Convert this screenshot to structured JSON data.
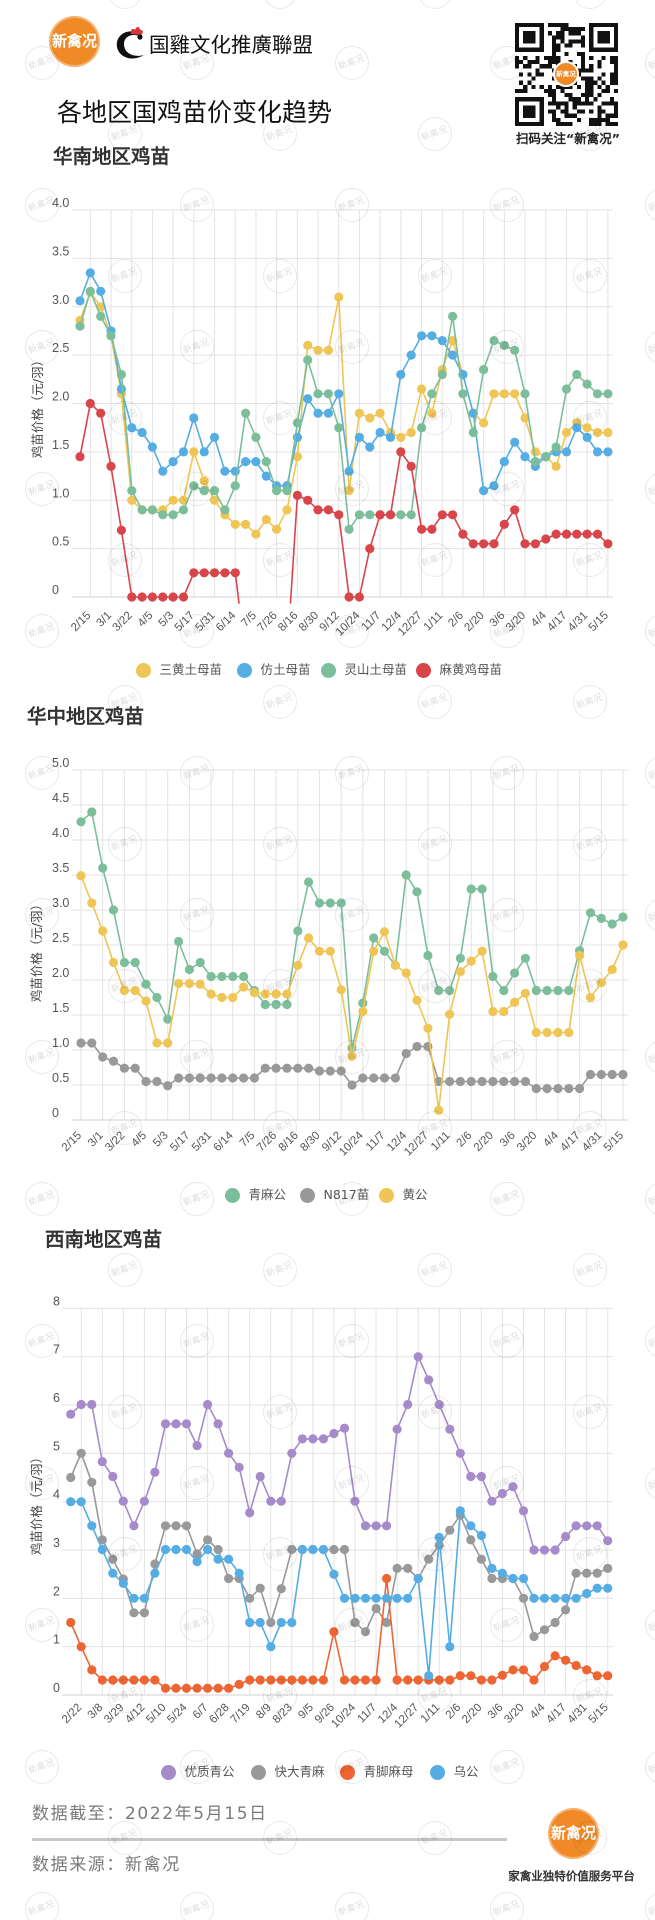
{
  "header": {
    "logo_text": "新禽况",
    "alliance_name": "国雞文化推廣聯盟",
    "page_title": "各地区国鸡苗价变化趋势",
    "qr_caption": "扫码关注“新禽况”",
    "qr_logo_text": "新禽况"
  },
  "colors": {
    "brand_orange": "#F08A26",
    "grid": "#E3E3E3",
    "text_gray": "#555555"
  },
  "chart_data": [
    {
      "type": "line",
      "title": "华南地区鸡苗",
      "xlabel": "",
      "ylabel": "鸡苗价格（元/羽）",
      "ylim": [
        0,
        4
      ],
      "ytick_step": 0.5,
      "yticks": [
        "0",
        "0.5",
        "1.0",
        "1.5",
        "2.0",
        "2.5",
        "3.0",
        "3.5",
        "4.0"
      ],
      "x_tick_labels": [
        "2/15",
        "3/1",
        "3/22",
        "4/5",
        "5/3",
        "5/17",
        "5/31",
        "6/14",
        "7/5",
        "7/26",
        "8/16",
        "8/30",
        "9/12",
        "10/24",
        "11/7",
        "12/4",
        "12/27",
        "1/11",
        "2/6",
        "2/20",
        "3/6",
        "3/20",
        "4/4",
        "4/17",
        "4/31",
        "5/15"
      ],
      "x_points": 52,
      "x_label_first_index": 1,
      "x_label_every": 2,
      "grid": true,
      "legend_position": "bottom",
      "series": [
        {
          "name": "三黄土母苗",
          "color": "#EFC555",
          "values": [
            2.86,
            3.15,
            3.0,
            2.7,
            2.1,
            1.0,
            0.9,
            0.9,
            0.9,
            1.0,
            1.0,
            1.5,
            1.2,
            1.0,
            0.85,
            0.75,
            0.75,
            0.65,
            0.8,
            0.7,
            0.9,
            1.45,
            2.6,
            2.55,
            2.55,
            3.1,
            1.1,
            1.9,
            1.85,
            1.9,
            1.7,
            1.65,
            1.7,
            2.15,
            1.9,
            2.35,
            2.65,
            2.3,
            1.9,
            1.8,
            2.1,
            2.1,
            2.1,
            1.85,
            1.5,
            1.45,
            1.35,
            1.7,
            1.8,
            1.75,
            1.7,
            1.7
          ]
        },
        {
          "name": "仿土母苗",
          "color": "#56ADE3",
          "values": [
            3.06,
            3.35,
            3.16,
            2.75,
            2.15,
            1.75,
            1.7,
            1.55,
            1.3,
            1.4,
            1.5,
            1.85,
            1.5,
            1.65,
            1.3,
            1.3,
            1.4,
            1.4,
            1.25,
            1.15,
            1.15,
            1.65,
            2.05,
            1.9,
            1.9,
            2.1,
            1.3,
            1.65,
            1.55,
            1.7,
            1.65,
            2.3,
            2.5,
            2.7,
            2.7,
            2.65,
            2.5,
            2.3,
            1.9,
            1.1,
            1.15,
            1.4,
            1.6,
            1.45,
            1.35,
            1.45,
            1.5,
            1.5,
            1.75,
            1.65,
            1.5,
            1.5
          ]
        },
        {
          "name": "灵山土母苗",
          "color": "#7DBE9A",
          "values": [
            2.8,
            3.16,
            2.9,
            2.7,
            2.3,
            1.1,
            0.9,
            0.9,
            0.85,
            0.85,
            0.9,
            1.15,
            1.1,
            1.1,
            0.9,
            1.15,
            1.9,
            1.65,
            1.4,
            1.1,
            1.1,
            1.8,
            2.45,
            2.1,
            2.1,
            1.75,
            0.7,
            0.85,
            0.85,
            0.85,
            0.85,
            0.85,
            0.85,
            1.75,
            2.1,
            2.3,
            2.9,
            2.1,
            1.7,
            2.35,
            2.65,
            2.6,
            2.55,
            2.1,
            1.4,
            1.45,
            1.55,
            2.15,
            2.3,
            2.2,
            2.1,
            2.1
          ]
        },
        {
          "name": "麻黄鸡母苗",
          "color": "#D8454A",
          "values": [
            1.45,
            2.0,
            1.9,
            1.35,
            0.69,
            0,
            0,
            0,
            0,
            0,
            0,
            0.25,
            0.25,
            0.25,
            0.25,
            0.25,
            null,
            null,
            null,
            null,
            null,
            1.05,
            1.0,
            0.9,
            0.9,
            0.85,
            0,
            0,
            0.5,
            0.85,
            0.85,
            1.5,
            1.35,
            0.7,
            0.7,
            0.85,
            0.85,
            0.65,
            0.55,
            0.55,
            0.55,
            0.75,
            0.9,
            0.55,
            0.55,
            0.6,
            0.65,
            0.65,
            0.65,
            0.65,
            0.65,
            0.55
          ]
        }
      ]
    },
    {
      "type": "line",
      "title": "华中地区鸡苗",
      "xlabel": "",
      "ylabel": "鸡苗价格（元/羽）",
      "ylim": [
        0,
        5
      ],
      "ytick_step": 0.5,
      "yticks": [
        "0",
        "0.5",
        "1.0",
        "1.5",
        "2.0",
        "2.5",
        "3.0",
        "3.5",
        "4.0",
        "4.5",
        "5.0"
      ],
      "x_tick_labels": [
        "2/15",
        "3/1",
        "3/22",
        "4/5",
        "5/3",
        "5/17",
        "5/31",
        "6/14",
        "7/5",
        "7/26",
        "8/16",
        "8/30",
        "9/12",
        "10/24",
        "11/7",
        "12/4",
        "12/27",
        "1/11",
        "2/6",
        "2/20",
        "3/6",
        "3/20",
        "4/4",
        "4/17",
        "4/31",
        "5/15"
      ],
      "x_points": 51,
      "x_label_first_index": 0,
      "x_label_every": 2,
      "grid": true,
      "legend_position": "bottom",
      "series": [
        {
          "name": "青麻公",
          "color": "#7DBE9A",
          "values": [
            4.26,
            4.4,
            3.6,
            3.0,
            2.25,
            2.25,
            1.94,
            1.75,
            1.44,
            2.55,
            2.15,
            2.25,
            2.05,
            2.05,
            2.05,
            2.05,
            1.85,
            1.65,
            1.65,
            1.65,
            2.7,
            3.4,
            3.1,
            3.1,
            3.1,
            1.03,
            1.67,
            2.6,
            2.41,
            2.21,
            3.5,
            3.26,
            2.35,
            1.85,
            1.85,
            2.31,
            3.3,
            3.3,
            2.05,
            1.85,
            2.1,
            2.31,
            1.85,
            1.85,
            1.85,
            1.85,
            2.42,
            2.96,
            2.88,
            2.8,
            2.9
          ]
        },
        {
          "name": "N817苗",
          "color": "#999999",
          "values": [
            1.1,
            1.1,
            0.9,
            0.84,
            0.74,
            0.74,
            0.55,
            0.55,
            0.49,
            0.6,
            0.6,
            0.6,
            0.6,
            0.6,
            0.6,
            0.6,
            0.6,
            0.74,
            0.74,
            0.74,
            0.74,
            0.74,
            0.7,
            0.7,
            0.7,
            0.5,
            0.6,
            0.6,
            0.6,
            0.6,
            0.95,
            1.05,
            1.05,
            0.55,
            0.55,
            0.55,
            0.55,
            0.55,
            0.55,
            0.55,
            0.55,
            0.55,
            0.45,
            0.45,
            0.45,
            0.45,
            0.45,
            0.65,
            0.65,
            0.65,
            0.65
          ]
        },
        {
          "name": "黄公",
          "color": "#EFC555",
          "values": [
            3.49,
            3.1,
            2.7,
            2.25,
            1.85,
            1.85,
            1.7,
            1.1,
            1.1,
            1.95,
            1.95,
            1.94,
            1.8,
            1.75,
            1.75,
            1.9,
            1.82,
            1.8,
            1.8,
            1.8,
            2.21,
            2.6,
            2.41,
            2.41,
            1.86,
            0.91,
            1.55,
            2.41,
            2.69,
            2.21,
            2.1,
            1.71,
            1.31,
            0.14,
            1.51,
            2.12,
            2.27,
            2.41,
            1.55,
            1.55,
            1.68,
            1.81,
            1.25,
            1.25,
            1.25,
            1.25,
            2.35,
            1.75,
            1.96,
            2.15,
            2.5
          ]
        }
      ]
    },
    {
      "type": "line",
      "title": "西南地区鸡苗",
      "xlabel": "",
      "ylabel": "鸡苗价格（元/羽）",
      "ylim": [
        0,
        8
      ],
      "ytick_step": 1,
      "yticks": [
        "0",
        "1",
        "2",
        "3",
        "4",
        "5",
        "6",
        "7",
        "8"
      ],
      "x_tick_labels": [
        "2/22",
        "3/8",
        "3/29",
        "4/12",
        "5/10",
        "5/24",
        "6/7",
        "6/28",
        "7/19",
        "8/9",
        "8/23",
        "9/5",
        "9/26",
        "10/24",
        "11/7",
        "12/4",
        "12/27",
        "1/11",
        "2/6",
        "2/20",
        "3/6",
        "3/20",
        "4/4",
        "4/17",
        "4/31",
        "5/15"
      ],
      "x_points": 52,
      "x_label_first_index": 1,
      "x_label_every": 2,
      "grid": true,
      "legend_position": "bottom",
      "series": [
        {
          "name": "优质青公",
          "color": "#A68BCB",
          "values": [
            5.81,
            6.01,
            6.01,
            4.83,
            4.52,
            4.01,
            3.5,
            4.01,
            4.61,
            5.61,
            5.61,
            5.61,
            5.16,
            6.01,
            5.61,
            5.0,
            4.71,
            3.77,
            4.52,
            4.01,
            4.01,
            5.0,
            5.3,
            5.3,
            5.3,
            5.41,
            5.52,
            4.01,
            3.5,
            3.5,
            3.5,
            5.5,
            6.01,
            7.0,
            6.52,
            6.01,
            5.5,
            5.0,
            4.52,
            4.52,
            4.01,
            4.17,
            4.31,
            3.81,
            3.0,
            3.0,
            3.0,
            3.28,
            3.5,
            3.5,
            3.5,
            3.19
          ]
        },
        {
          "name": "快大青麻",
          "color": "#999999",
          "values": [
            4.5,
            5.0,
            4.4,
            3.21,
            2.81,
            2.4,
            1.7,
            1.7,
            2.71,
            3.5,
            3.5,
            3.5,
            2.92,
            3.21,
            3.01,
            2.41,
            2.41,
            2.0,
            2.21,
            1.5,
            2.2,
            3.01,
            3.01,
            3.01,
            3.01,
            3.01,
            3.01,
            1.5,
            1.31,
            1.79,
            1.5,
            2.62,
            2.62,
            2.41,
            2.81,
            3.1,
            3.41,
            3.72,
            3.21,
            2.81,
            2.41,
            2.41,
            2.41,
            2.0,
            1.21,
            1.35,
            1.5,
            1.76,
            2.52,
            2.52,
            2.52,
            2.62
          ]
        },
        {
          "name": "青脚麻母",
          "color": "#EE6534",
          "values": [
            1.5,
            1.0,
            0.52,
            0.31,
            0.31,
            0.31,
            0.31,
            0.31,
            0.31,
            0.14,
            0.14,
            0.14,
            0.14,
            0.14,
            0.14,
            0.14,
            0.22,
            0.31,
            0.31,
            0.31,
            0.31,
            0.31,
            0.31,
            0.31,
            0.31,
            1.31,
            0.31,
            0.31,
            0.31,
            0.31,
            2.41,
            0.31,
            0.31,
            0.31,
            0.31,
            0.31,
            0.31,
            0.4,
            0.4,
            0.31,
            0.31,
            0.41,
            0.52,
            0.52,
            0.31,
            0.59,
            0.81,
            0.72,
            0.61,
            0.52,
            0.4,
            0.4
          ]
        },
        {
          "name": "乌公",
          "color": "#56ADE3",
          "values": [
            4.0,
            4.0,
            3.5,
            3.01,
            2.52,
            2.31,
            2.0,
            2.0,
            2.52,
            3.01,
            3.01,
            3.01,
            2.76,
            3.01,
            2.81,
            2.81,
            2.52,
            1.5,
            1.5,
            1.0,
            1.5,
            1.5,
            3.01,
            3.01,
            3.01,
            2.5,
            2.0,
            2.0,
            2.0,
            2.0,
            2.0,
            2.0,
            2.0,
            2.41,
            0.4,
            3.26,
            1.0,
            3.81,
            3.5,
            3.3,
            2.62,
            2.52,
            2.41,
            2.41,
            2.0,
            2.0,
            2.0,
            2.0,
            2.0,
            2.1,
            2.21,
            2.21
          ]
        }
      ]
    }
  ],
  "footer": {
    "data_cutoff": "数据截至：2022年5月15日",
    "data_source": "数据来源：新禽况",
    "logo_text": "新禽况",
    "tagline": "家禽业独特价值服务平台"
  },
  "watermark": {
    "text": "新禽况"
  }
}
